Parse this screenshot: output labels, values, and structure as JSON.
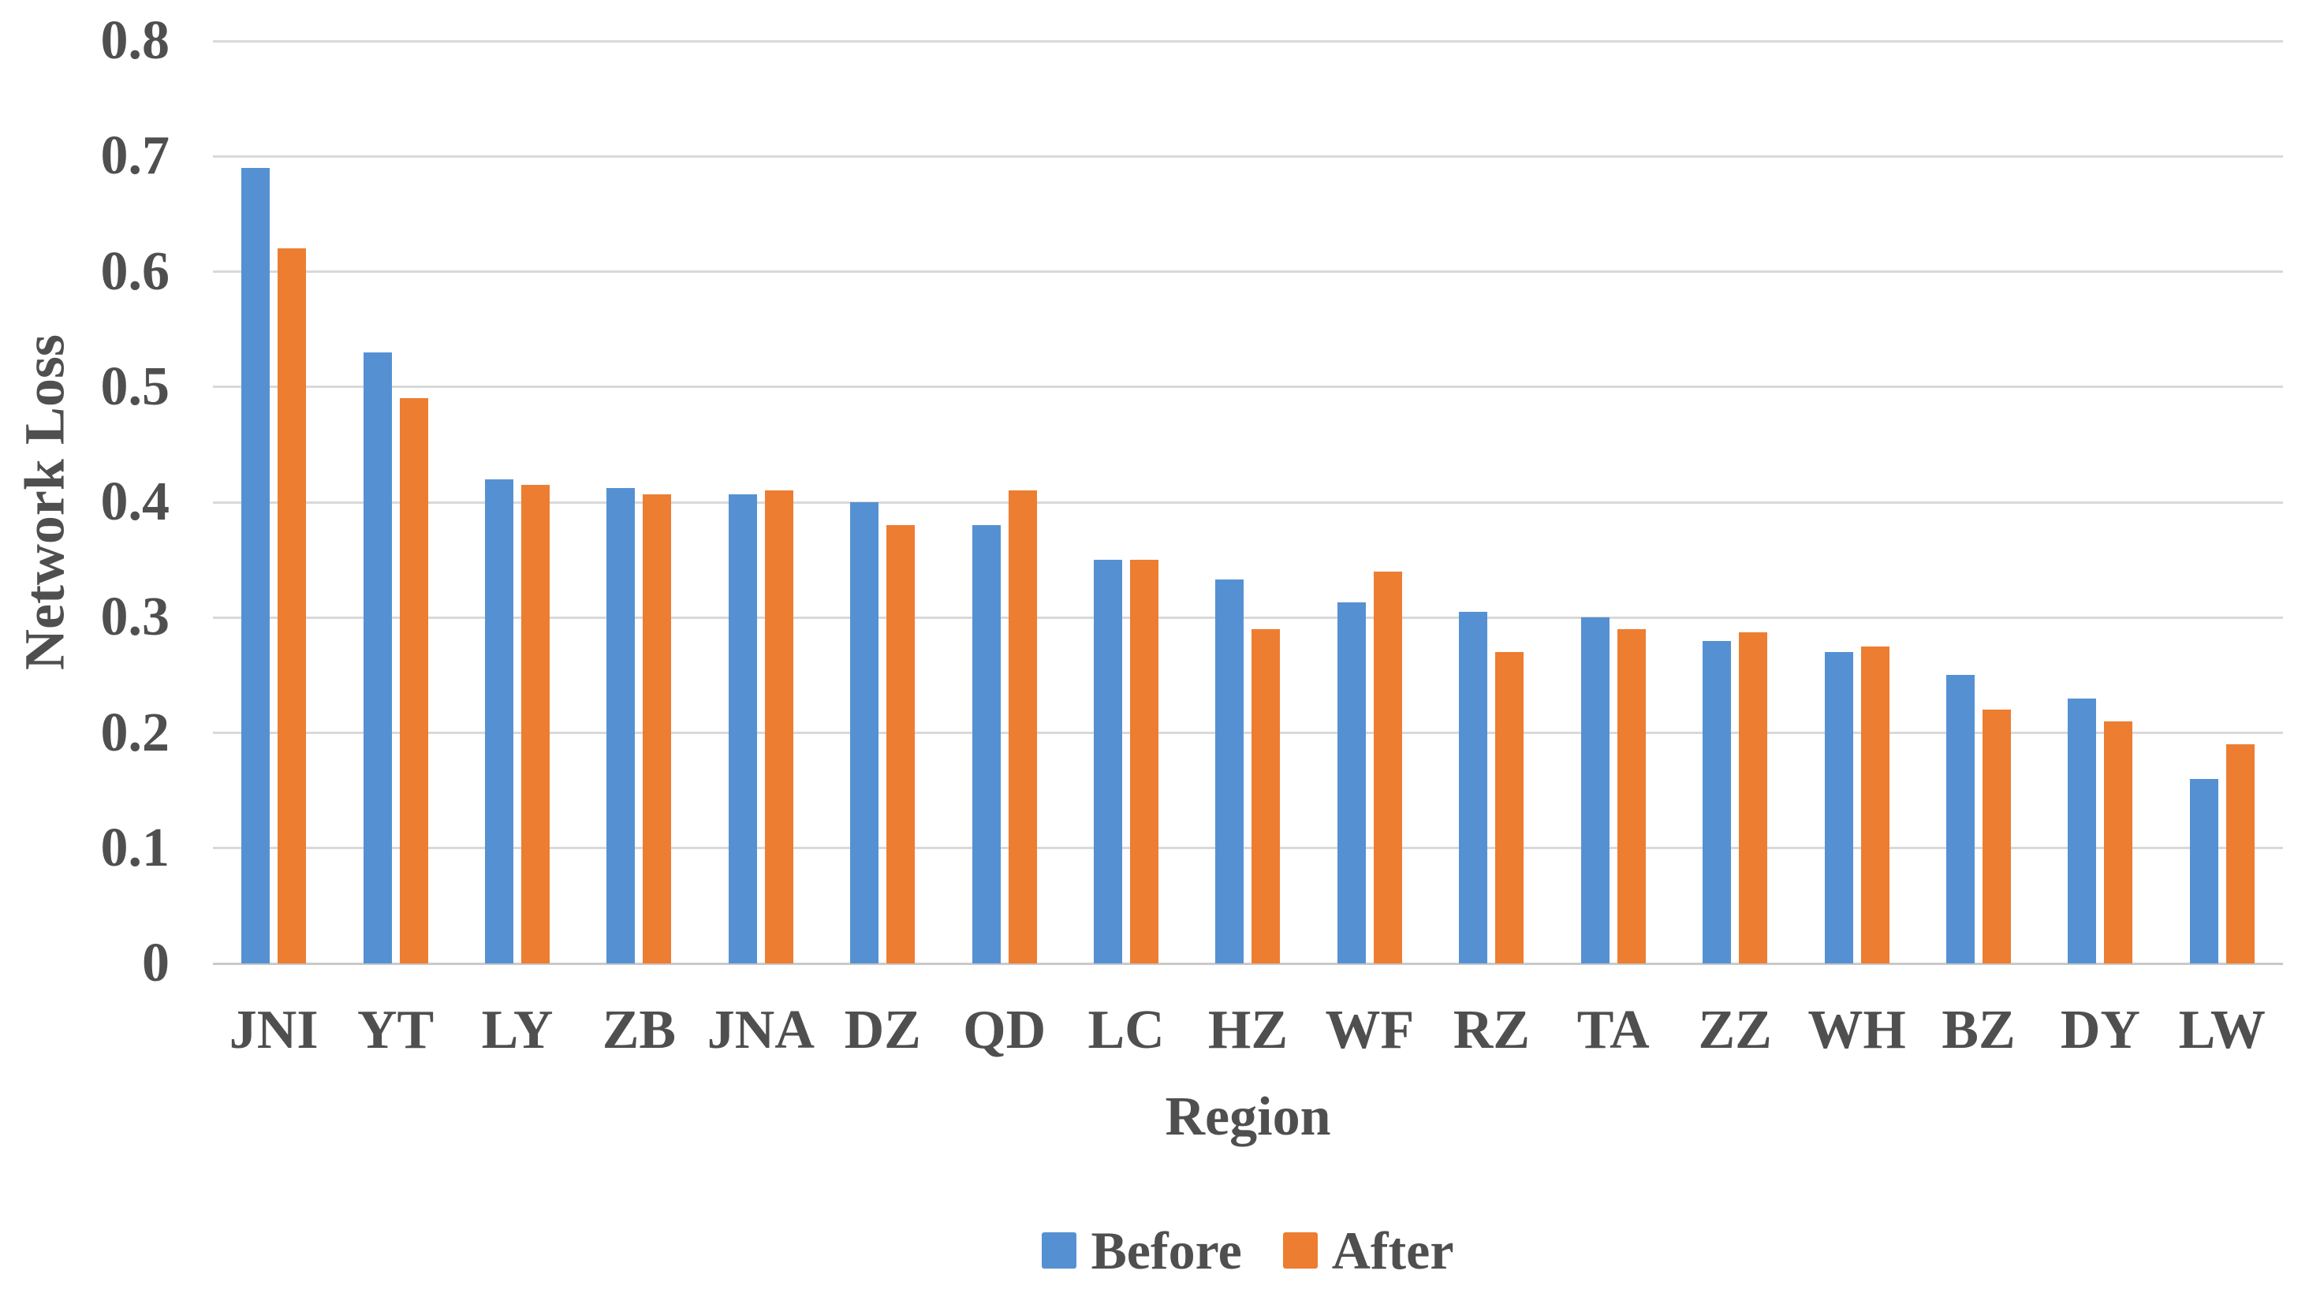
{
  "chart_data": {
    "type": "bar",
    "title": "",
    "xlabel": "Region",
    "ylabel": "Network Loss",
    "ylim": [
      0,
      0.8
    ],
    "ytick_step": 0.1,
    "ytick_labels": [
      "0",
      "0.1",
      "0.2",
      "0.3",
      "0.4",
      "0.5",
      "0.6",
      "0.7",
      "0.8"
    ],
    "grid": "horizontal",
    "legend_position": "bottom-center",
    "categories": [
      "JNI",
      "YT",
      "LY",
      "ZB",
      "JNA",
      "DZ",
      "QD",
      "LC",
      "HZ",
      "WF",
      "RZ",
      "TA",
      "ZZ",
      "WH",
      "BZ",
      "DY",
      "LW"
    ],
    "series": [
      {
        "name": "Before",
        "color": "#5591D2",
        "values": [
          0.69,
          0.53,
          0.42,
          0.412,
          0.407,
          0.4,
          0.38,
          0.35,
          0.333,
          0.313,
          0.305,
          0.3,
          0.28,
          0.27,
          0.25,
          0.23,
          0.16
        ]
      },
      {
        "name": "After",
        "color": "#ED7D31",
        "values": [
          0.62,
          0.49,
          0.415,
          0.407,
          0.41,
          0.38,
          0.41,
          0.35,
          0.29,
          0.34,
          0.27,
          0.29,
          0.287,
          0.275,
          0.22,
          0.21,
          0.19
        ]
      }
    ],
    "colors": {
      "gridline": "#D9D9D9",
      "axis_baseline": "#C9C9C9",
      "text": "#4F4F4F",
      "background": "#FFFFFF"
    }
  }
}
